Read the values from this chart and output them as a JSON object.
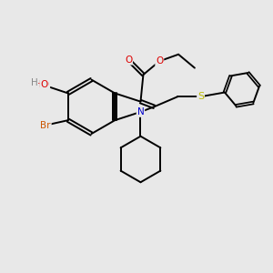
{
  "background_color": "#e8e8e8",
  "bond_color": "#000000",
  "atom_colors": {
    "O": "#dd0000",
    "N": "#0000cc",
    "Br": "#cc5500",
    "S": "#bbbb00",
    "H": "#888888",
    "C": "#000000"
  }
}
